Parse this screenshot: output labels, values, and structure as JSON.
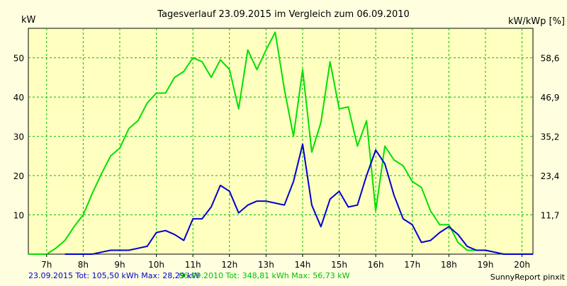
{
  "chart_data": {
    "type": "line",
    "title": "Tagesverlauf 23.09.2015 im Vergleich zum 06.09.2010",
    "ylabel_left": "kW",
    "ylabel_right": "kW/kWp [%]",
    "xlim": [
      6.5,
      20.3
    ],
    "ylim": [
      0,
      57.5
    ],
    "x_ticks": [
      {
        "label": "7h",
        "x": 7
      },
      {
        "label": "8h",
        "x": 8
      },
      {
        "label": "9h",
        "x": 9
      },
      {
        "label": "10h",
        "x": 10
      },
      {
        "label": "11h",
        "x": 11
      },
      {
        "label": "12h",
        "x": 12
      },
      {
        "label": "13h",
        "x": 13
      },
      {
        "label": "14h",
        "x": 14
      },
      {
        "label": "15h",
        "x": 15
      },
      {
        "label": "16h",
        "x": 16
      },
      {
        "label": "17h",
        "x": 17
      },
      {
        "label": "18h",
        "x": 18
      },
      {
        "label": "19h",
        "x": 19
      },
      {
        "label": "20h",
        "x": 20
      }
    ],
    "y_ticks_left": [
      10,
      20,
      30,
      40,
      50
    ],
    "y_ticks_right": [
      {
        "label": "11,7",
        "y": 10
      },
      {
        "label": "23,4",
        "y": 20
      },
      {
        "label": "35,2",
        "y": 30
      },
      {
        "label": "46,9",
        "y": 40
      },
      {
        "label": "58,6",
        "y": 50
      }
    ],
    "grid": true,
    "series": [
      {
        "color": "#00e000",
        "x": [
          6.5,
          6.75,
          7,
          7.25,
          7.5,
          7.75,
          8,
          8.25,
          8.5,
          8.75,
          9,
          9.25,
          9.5,
          9.75,
          10,
          10.25,
          10.5,
          10.75,
          11,
          11.25,
          11.5,
          11.75,
          12,
          12.25,
          12.5,
          12.75,
          13,
          13.25,
          13.5,
          13.75,
          14,
          14.25,
          14.5,
          14.75,
          15,
          15.25,
          15.5,
          15.75,
          16,
          16.25,
          16.5,
          16.75,
          17,
          17.25,
          17.5,
          17.75,
          18,
          18.25,
          18.5,
          18.75,
          19,
          19.25,
          19.5,
          19.75,
          20,
          20.3
        ],
        "y": [
          0,
          0,
          0,
          1.5,
          3.5,
          7,
          10,
          15.5,
          20.5,
          25,
          27,
          32,
          34,
          38.5,
          41,
          41,
          45,
          46.5,
          50,
          49,
          45,
          49.5,
          47,
          37,
          52,
          47,
          52,
          56.5,
          42,
          30,
          47,
          26,
          33.5,
          49,
          37,
          37.5,
          27.5,
          34,
          11,
          27.5,
          24,
          22.5,
          18.5,
          17,
          11,
          7.5,
          7.5,
          3,
          1,
          1,
          1,
          0.5,
          0,
          0,
          0,
          0
        ]
      },
      {
        "color": "#0000d0",
        "x": [
          7.5,
          8,
          8.25,
          8.5,
          8.75,
          9,
          9.25,
          9.5,
          9.75,
          10,
          10.25,
          10.5,
          10.75,
          11,
          11.25,
          11.5,
          11.75,
          12,
          12.25,
          12.5,
          12.75,
          13,
          13.25,
          13.5,
          13.75,
          14,
          14.25,
          14.5,
          14.75,
          15,
          15.25,
          15.5,
          15.75,
          16,
          16.25,
          16.5,
          16.75,
          17,
          17.25,
          17.5,
          17.75,
          18,
          18.25,
          18.5,
          18.75,
          19,
          19.25,
          19.5,
          19.75,
          20,
          20.3
        ],
        "y": [
          0,
          0,
          0,
          0.5,
          1,
          1,
          1,
          1.5,
          2,
          5.5,
          6,
          5,
          3.5,
          9,
          9,
          12,
          17.5,
          16,
          10.5,
          12.5,
          13.5,
          13.5,
          13,
          12.5,
          18.5,
          28,
          12.5,
          7,
          14,
          16,
          12,
          12.5,
          20,
          26.5,
          23,
          15,
          9,
          7.5,
          3,
          3.5,
          5.5,
          7,
          5,
          2,
          1,
          1,
          0.5,
          0,
          0,
          0,
          0
        ]
      }
    ],
    "footer_line1": "23.09.2015 Tot: 105,50 kWh Max: 28,29 kW",
    "footer_line2": "06.09.2010 Tot: 348,81 kWh Max: 56,73 kW",
    "credit": "SunnyReport pinxit"
  }
}
